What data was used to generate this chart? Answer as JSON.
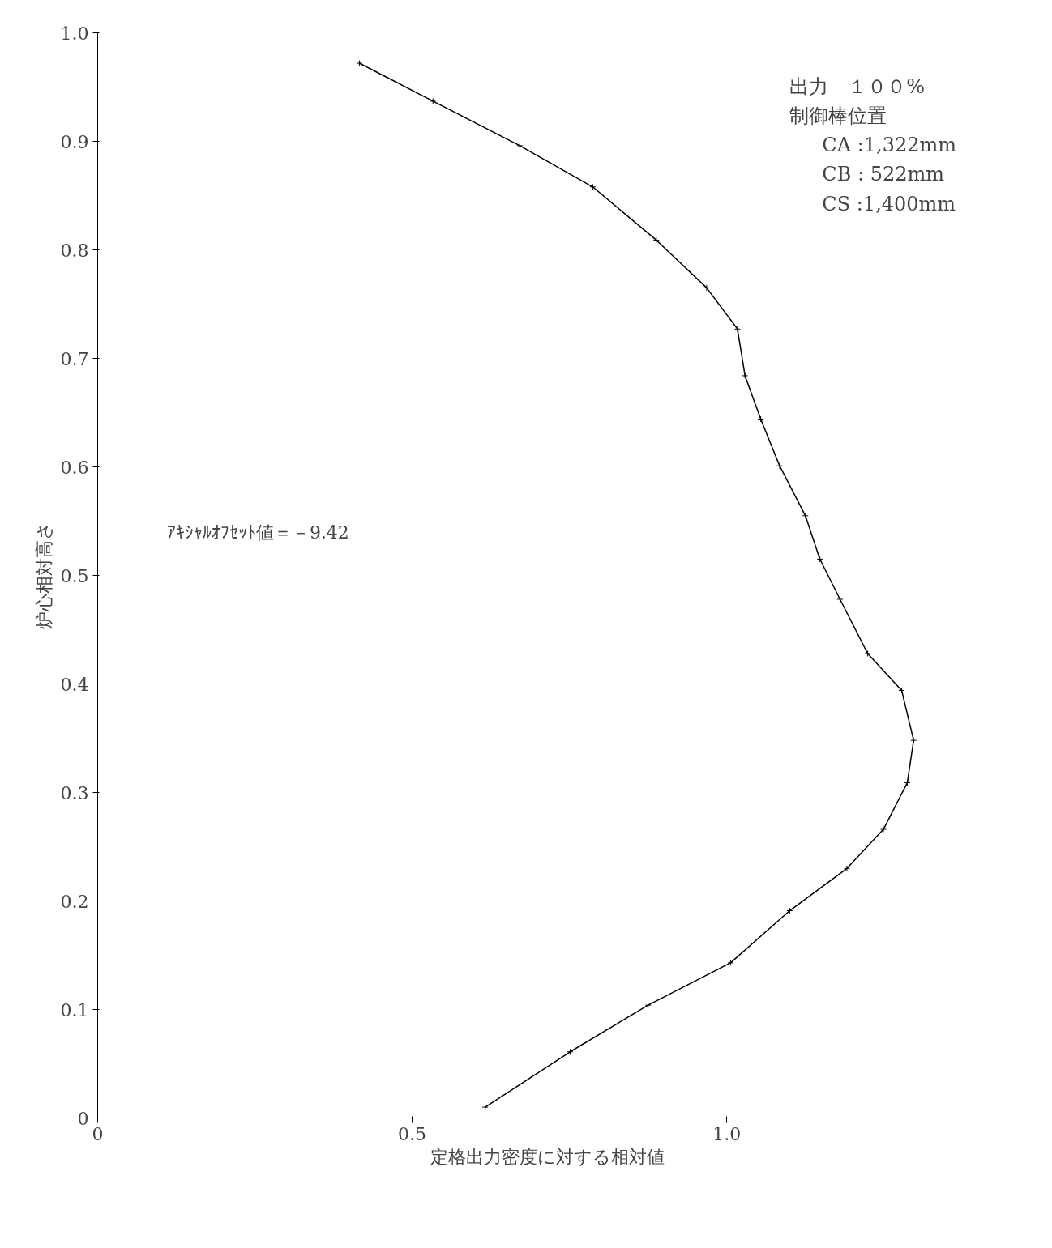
{
  "chart_data": {
    "type": "line",
    "xlabel": "定格出力密度に対する相対値",
    "ylabel": "炉心相対高さ",
    "x": [
      0.416,
      0.533,
      0.671,
      0.787,
      0.888,
      0.968,
      1.017,
      1.029,
      1.054,
      1.084,
      1.125,
      1.148,
      1.18,
      1.224,
      1.278,
      1.297,
      1.287,
      1.249,
      1.191,
      1.1,
      1.006,
      0.875,
      0.751,
      0.616
    ],
    "values": [
      0.972,
      0.937,
      0.896,
      0.858,
      0.809,
      0.765,
      0.727,
      0.684,
      0.644,
      0.601,
      0.555,
      0.515,
      0.478,
      0.428,
      0.394,
      0.348,
      0.309,
      0.266,
      0.23,
      0.191,
      0.143,
      0.104,
      0.061,
      0.01
    ],
    "color": "#000000",
    "marker": "cross",
    "line_style": "solid",
    "grid": false,
    "xlim": [
      0,
      1.43
    ],
    "ylim": [
      0,
      1.0
    ],
    "xticks": [
      0,
      0.5,
      {
        "value": 1.0,
        "label": "1.0"
      }
    ],
    "yticks": [
      0,
      0.1,
      0.2,
      0.3,
      0.4,
      0.5,
      0.6,
      0.7,
      0.8,
      0.9,
      {
        "value": 1.0,
        "label": "1.0"
      }
    ],
    "annotations": [
      "出力　１００%",
      "制御棒位置",
      "CA :1,322mm",
      "CB :  522mm",
      "CS :1,400mm",
      "ｱｷｼｬﾙｵﾌｾｯﾄ値＝－9.42"
    ]
  }
}
